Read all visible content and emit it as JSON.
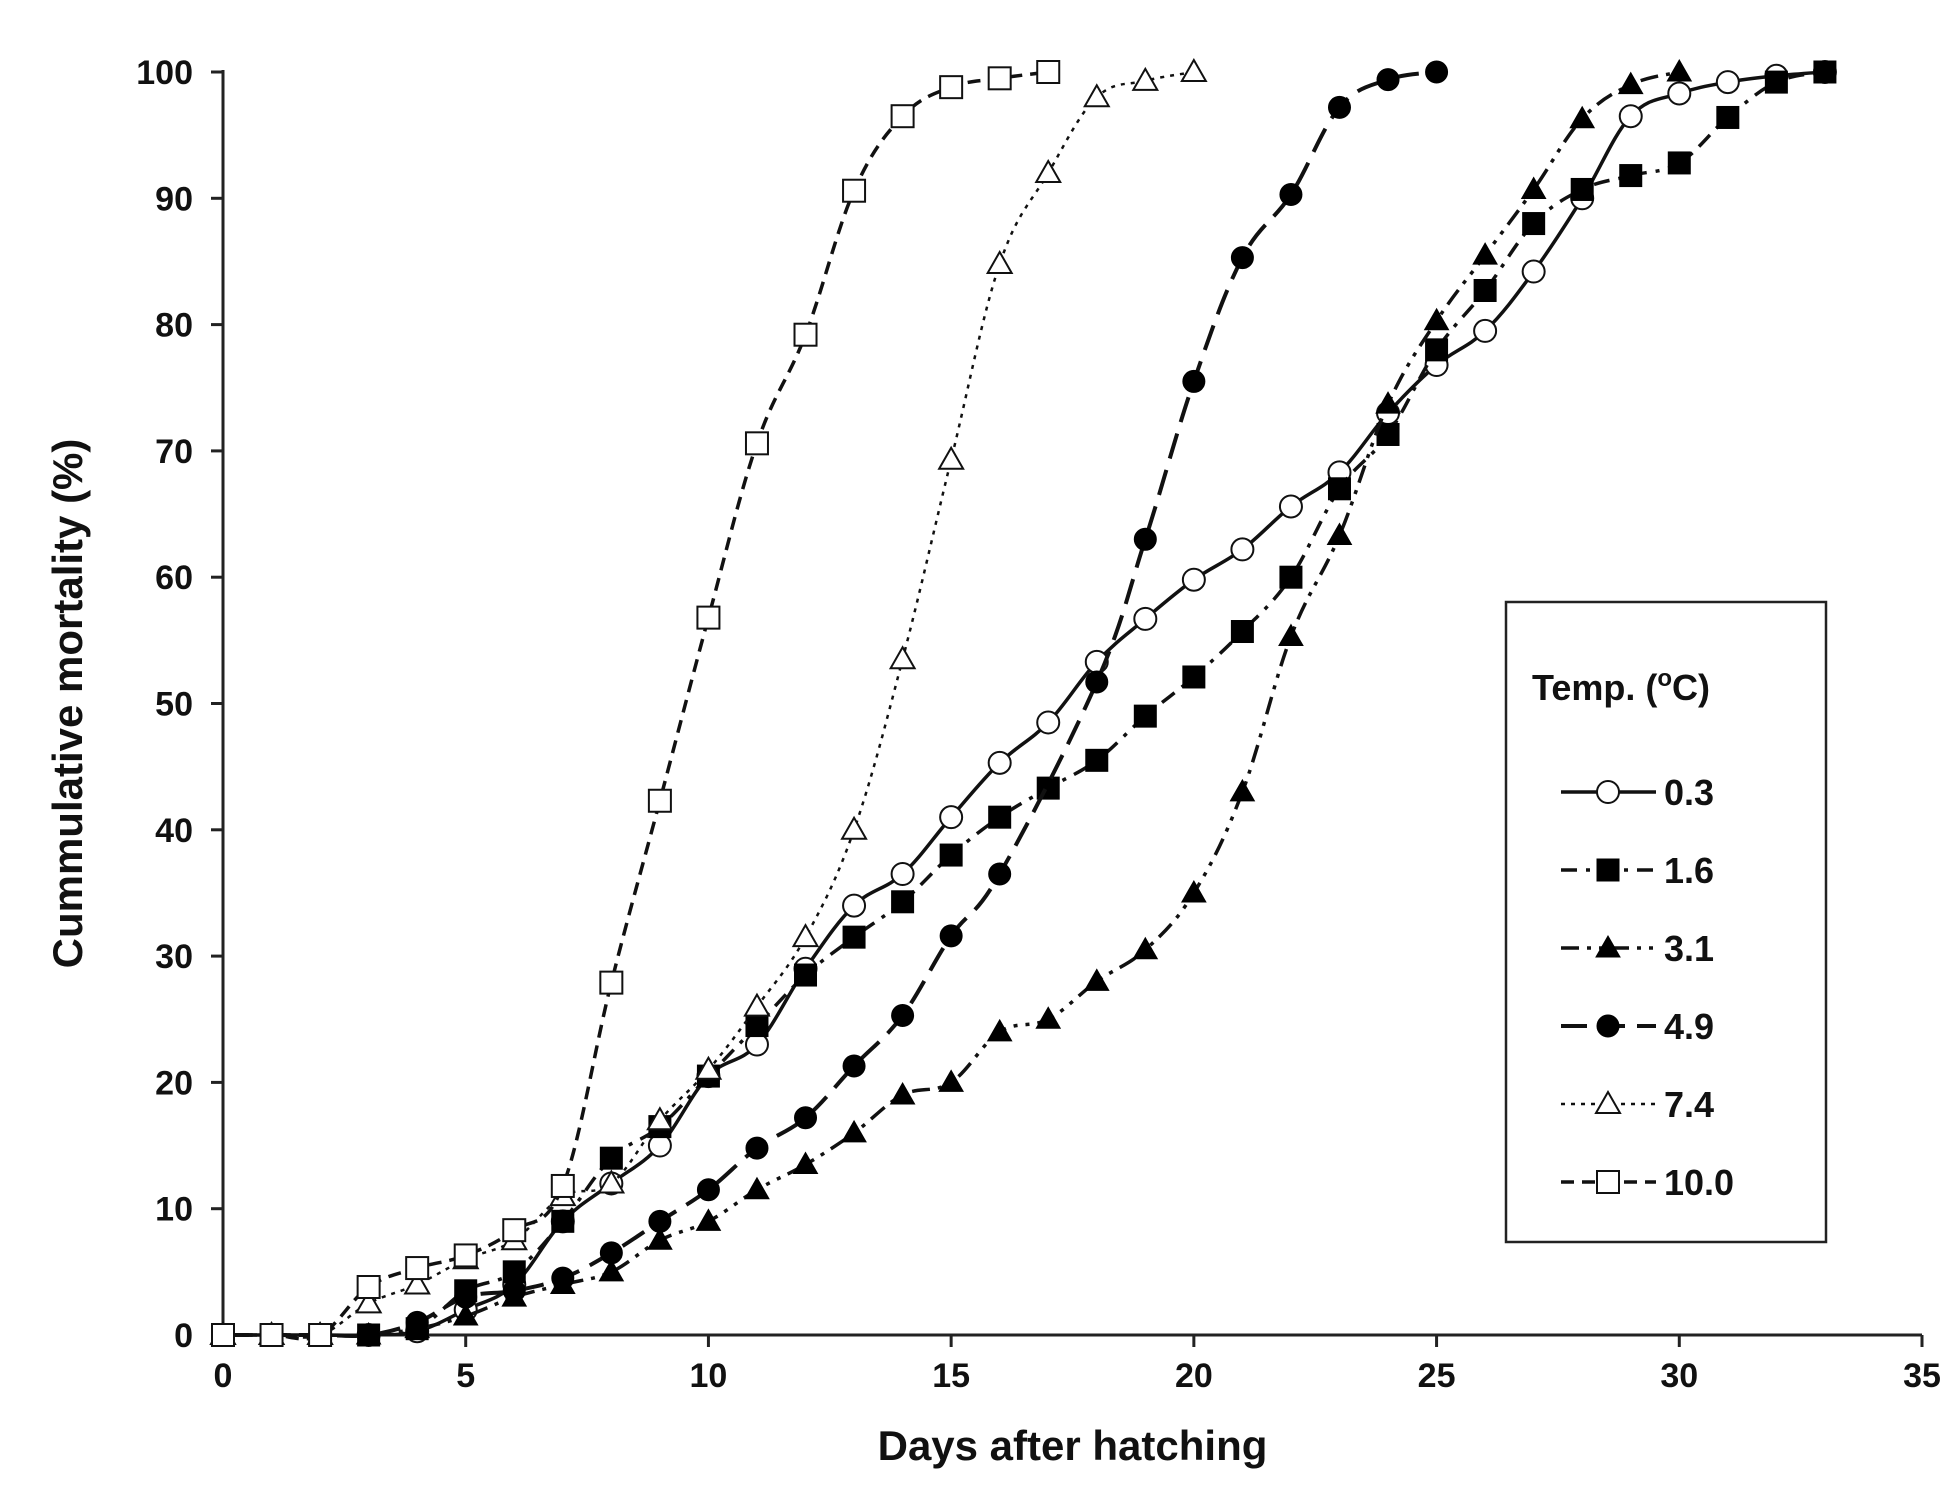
{
  "chart_data": {
    "type": "line",
    "title": "",
    "xlabel": "Days after hatching",
    "ylabel": "Cummulative mortality (%)",
    "xlim": [
      0,
      35
    ],
    "ylim": [
      0,
      100
    ],
    "xticks": [
      0,
      5,
      10,
      15,
      20,
      25,
      30,
      35
    ],
    "yticks": [
      0,
      10,
      20,
      30,
      40,
      50,
      60,
      70,
      80,
      90,
      100
    ],
    "grid": false,
    "legend": {
      "title": "Temp. (",
      "title_sup": "o",
      "title_end": "C)",
      "placement": "right"
    },
    "series": [
      {
        "name": "0.3",
        "marker": "circle-open",
        "line": "solid",
        "points": [
          [
            0,
            0
          ],
          [
            1,
            0
          ],
          [
            2,
            0
          ],
          [
            3,
            0
          ],
          [
            4,
            0.3
          ],
          [
            5,
            2
          ],
          [
            6,
            4
          ],
          [
            7,
            9
          ],
          [
            8,
            12
          ],
          [
            9,
            15
          ],
          [
            10,
            20.5
          ],
          [
            11,
            23
          ],
          [
            12,
            29
          ],
          [
            13,
            34
          ],
          [
            14,
            36.5
          ],
          [
            15,
            41
          ],
          [
            16,
            45.3
          ],
          [
            17,
            48.5
          ],
          [
            18,
            53.3
          ],
          [
            19,
            56.7
          ],
          [
            20,
            59.8
          ],
          [
            21,
            62.2
          ],
          [
            22,
            65.6
          ],
          [
            23,
            68.3
          ],
          [
            24,
            73
          ],
          [
            25,
            76.8
          ],
          [
            26,
            79.5
          ],
          [
            27,
            84.2
          ],
          [
            28,
            90
          ],
          [
            29,
            96.5
          ],
          [
            30,
            98.3
          ],
          [
            31,
            99.2
          ],
          [
            32,
            99.7
          ],
          [
            33,
            100
          ]
        ]
      },
      {
        "name": "1.6",
        "marker": "square-filled",
        "line": "dashdot",
        "points": [
          [
            0,
            0
          ],
          [
            1,
            0
          ],
          [
            2,
            0
          ],
          [
            3,
            0
          ],
          [
            4,
            0.5
          ],
          [
            5,
            3.5
          ],
          [
            6,
            5
          ],
          [
            7,
            9
          ],
          [
            8,
            14
          ],
          [
            9,
            16.5
          ],
          [
            10,
            20.5
          ],
          [
            11,
            24.5
          ],
          [
            12,
            28.5
          ],
          [
            13,
            31.5
          ],
          [
            14,
            34.3
          ],
          [
            15,
            38
          ],
          [
            16,
            41
          ],
          [
            17,
            43.3
          ],
          [
            18,
            45.5
          ],
          [
            19,
            49
          ],
          [
            20,
            52.1
          ],
          [
            21,
            55.7
          ],
          [
            22,
            60
          ],
          [
            23,
            67
          ],
          [
            24,
            71.3
          ],
          [
            25,
            78
          ],
          [
            26,
            82.7
          ],
          [
            27,
            88
          ],
          [
            28,
            90.7
          ],
          [
            29,
            91.8
          ],
          [
            30,
            92.8
          ],
          [
            31,
            96.4
          ],
          [
            32,
            99.2
          ],
          [
            33,
            100
          ]
        ]
      },
      {
        "name": "3.1",
        "marker": "triangle-filled",
        "line": "dashdotdot",
        "points": [
          [
            0,
            0
          ],
          [
            1,
            0
          ],
          [
            2,
            0
          ],
          [
            3,
            0
          ],
          [
            4,
            0.5
          ],
          [
            5,
            1.5
          ],
          [
            6,
            3
          ],
          [
            7,
            4
          ],
          [
            8,
            5
          ],
          [
            9,
            7.5
          ],
          [
            10,
            9
          ],
          [
            11,
            11.5
          ],
          [
            12,
            13.5
          ],
          [
            13,
            16
          ],
          [
            14,
            19
          ],
          [
            15,
            20
          ],
          [
            16,
            24
          ],
          [
            17,
            25
          ],
          [
            18,
            28
          ],
          [
            19,
            30.5
          ],
          [
            20,
            35
          ],
          [
            21,
            43
          ],
          [
            22,
            55.3
          ],
          [
            23,
            63.3
          ],
          [
            24,
            73.7
          ],
          [
            25,
            80.3
          ],
          [
            26,
            85.5
          ],
          [
            27,
            90.7
          ],
          [
            28,
            96.3
          ],
          [
            29,
            99
          ],
          [
            30,
            100
          ]
        ]
      },
      {
        "name": "4.9",
        "marker": "circle-filled",
        "line": "longdash",
        "points": [
          [
            0,
            0
          ],
          [
            1,
            0
          ],
          [
            2,
            0
          ],
          [
            3,
            0
          ],
          [
            4,
            1
          ],
          [
            5,
            3
          ],
          [
            6,
            3.5
          ],
          [
            7,
            4.5
          ],
          [
            8,
            6.5
          ],
          [
            9,
            9
          ],
          [
            10,
            11.5
          ],
          [
            11,
            14.8
          ],
          [
            12,
            17.2
          ],
          [
            13,
            21.3
          ],
          [
            14,
            25.3
          ],
          [
            15,
            31.6
          ],
          [
            16,
            36.5
          ],
          [
            18,
            51.7
          ],
          [
            19,
            63
          ],
          [
            20,
            75.5
          ],
          [
            21,
            85.3
          ],
          [
            22,
            90.3
          ],
          [
            23,
            97.2
          ],
          [
            24,
            99.4
          ],
          [
            25,
            100
          ]
        ]
      },
      {
        "name": "7.4",
        "marker": "triangle-open",
        "line": "dotted",
        "points": [
          [
            0,
            0
          ],
          [
            1,
            0
          ],
          [
            2,
            0
          ],
          [
            3,
            2.5
          ],
          [
            4,
            4
          ],
          [
            5,
            6
          ],
          [
            6,
            7.5
          ],
          [
            7,
            11
          ],
          [
            8,
            12
          ],
          [
            9,
            17
          ],
          [
            10,
            21
          ],
          [
            11,
            26
          ],
          [
            12,
            31.5
          ],
          [
            13,
            40
          ],
          [
            14,
            53.5
          ],
          [
            15,
            69.3
          ],
          [
            16,
            84.8
          ],
          [
            17,
            92
          ],
          [
            18,
            98
          ],
          [
            19,
            99.3
          ],
          [
            20,
            100
          ]
        ]
      },
      {
        "name": "10.0",
        "marker": "square-open",
        "line": "dashed",
        "points": [
          [
            0,
            0
          ],
          [
            1,
            0
          ],
          [
            2,
            0
          ],
          [
            3,
            3.8
          ],
          [
            4,
            5.3
          ],
          [
            5,
            6.3
          ],
          [
            6,
            8.3
          ],
          [
            7,
            11.8
          ],
          [
            8,
            27.9
          ],
          [
            9,
            42.3
          ],
          [
            10,
            56.8
          ],
          [
            11,
            70.6
          ],
          [
            12,
            79.2
          ],
          [
            13,
            90.6
          ],
          [
            14,
            96.5
          ],
          [
            15,
            98.8
          ],
          [
            16,
            99.5
          ],
          [
            17,
            100
          ]
        ]
      }
    ]
  }
}
